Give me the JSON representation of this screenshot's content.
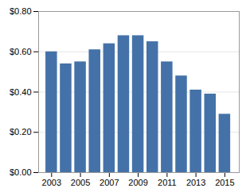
{
  "chart_data": {
    "type": "bar",
    "x": [
      2003,
      2004,
      2005,
      2006,
      2007,
      2008,
      2009,
      2010,
      2011,
      2012,
      2013,
      2014,
      2015
    ],
    "values": [
      0.6,
      0.54,
      0.55,
      0.61,
      0.64,
      0.68,
      0.68,
      0.65,
      0.55,
      0.48,
      0.41,
      0.39,
      0.29
    ],
    "color": "#4472a8",
    "xlim": [
      2002.1,
      2016.0
    ],
    "xticks": [
      2003,
      2005,
      2007,
      2009,
      2011,
      2013,
      2015
    ],
    "ylim": [
      0,
      0.8
    ],
    "yticks": [
      {
        "value": 0.0,
        "label": "$0.00"
      },
      {
        "value": 0.2,
        "label": "$0.20"
      },
      {
        "value": 0.4,
        "label": "$0.40"
      },
      {
        "value": 0.6,
        "label": "$0.60"
      },
      {
        "value": 0.8,
        "label": "$0.80"
      }
    ],
    "grid": true
  }
}
